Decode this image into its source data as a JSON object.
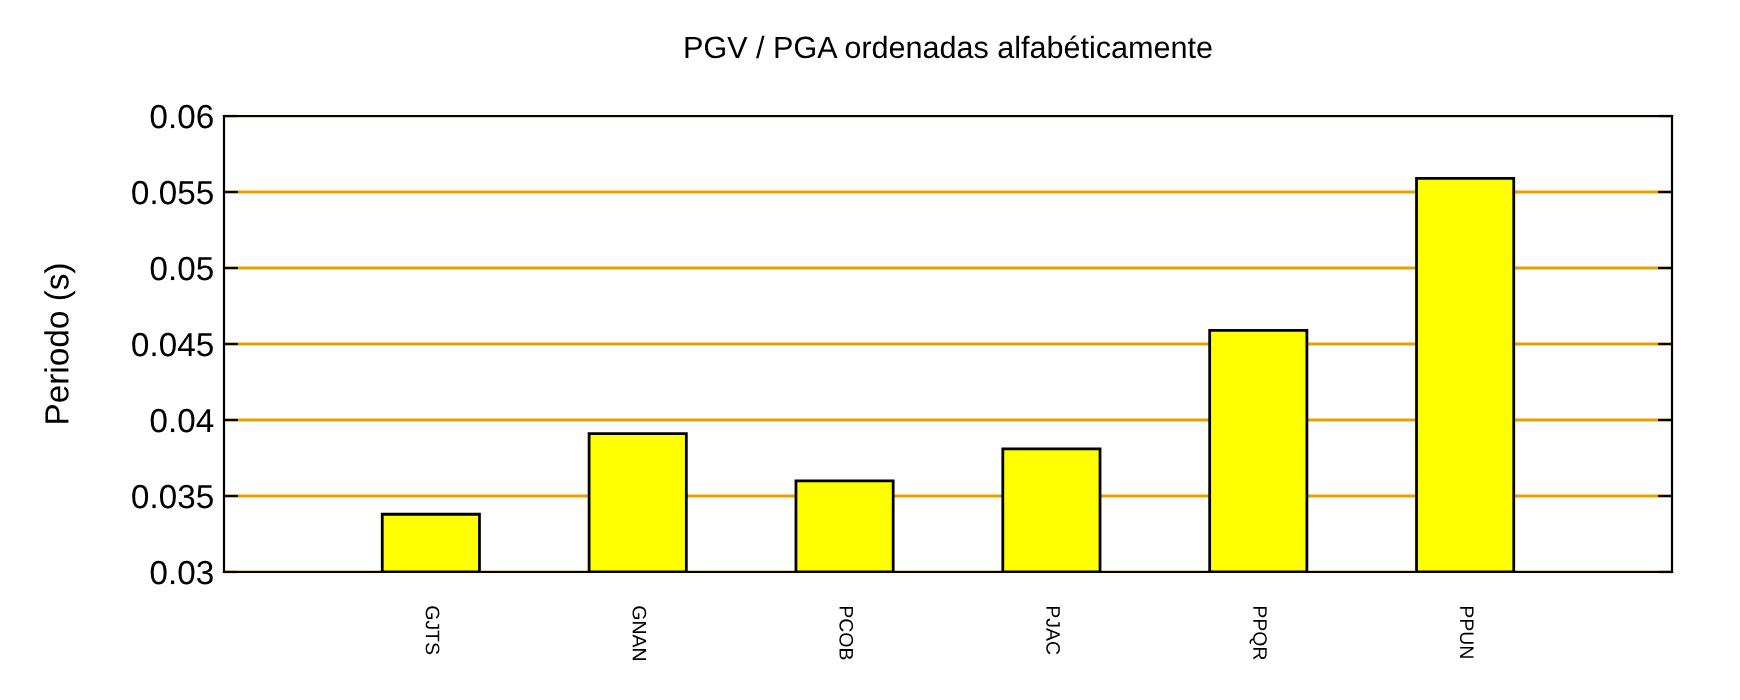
{
  "chart_data": {
    "type": "bar",
    "title": "PGV / PGA ordenadas alfabéticamente",
    "ylabel": "Periodo (s)",
    "categories": [
      "GJTS",
      "GNAN",
      "PCOB",
      "PJAC",
      "PPQR",
      "PPUN"
    ],
    "values": [
      0.0338,
      0.0391,
      0.036,
      0.0381,
      0.0459,
      0.0559
    ],
    "color": "#ffff00",
    "ylim": [
      0.03,
      0.06
    ],
    "yticks": [
      0.03,
      0.035,
      0.04,
      0.045,
      0.05,
      0.055,
      0.06
    ],
    "grid": "y"
  }
}
